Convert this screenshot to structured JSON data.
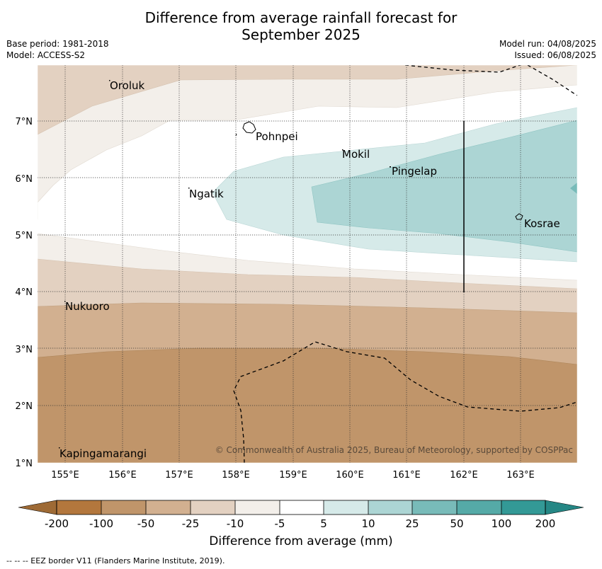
{
  "title_line1": "Difference from average rainfall forecast for",
  "title_line2": "September 2025",
  "base_period": "Base period: 1981-2018",
  "model": "Model: ACCESS-S2",
  "model_run": "Model run: 04/08/2025",
  "issued": "Issued: 06/08/2025",
  "copyright": "© Commonwealth of Australia 2025, Bureau of Meteorology, supported by COSPPac",
  "colorbar_label": "Difference from average (mm)",
  "footer": "--  --  -- EEZ border V11 (Flanders Marine Institute, 2019).",
  "map": {
    "lon_range": [
      154.5,
      164.0
    ],
    "lat_range": [
      1.0,
      8.0
    ],
    "lon_ticks": [
      "155°E",
      "156°E",
      "157°E",
      "158°E",
      "159°E",
      "160°E",
      "161°E",
      "162°E",
      "163°E"
    ],
    "lat_ticks": [
      "1°N",
      "2°N",
      "3°N",
      "4°N",
      "5°N",
      "6°N",
      "7°N"
    ],
    "grid": true,
    "places": [
      {
        "name": "Oroluk",
        "lon": 155.75,
        "lat": 7.6
      },
      {
        "name": "Pohnpei",
        "lon": 158.3,
        "lat": 6.85
      },
      {
        "name": "Mokil",
        "lon": 159.85,
        "lat": 6.4
      },
      {
        "name": "Pingelap",
        "lon": 160.7,
        "lat": 6.2
      },
      {
        "name": "Ngatik",
        "lon": 157.15,
        "lat": 5.8
      },
      {
        "name": "Kosrae",
        "lon": 163.0,
        "lat": 5.3
      },
      {
        "name": "Nukuoro",
        "lon": 154.95,
        "lat": 3.85
      },
      {
        "name": "Kapingamarangi",
        "lon": 154.85,
        "lat": 1.25
      }
    ]
  },
  "colorbar": {
    "ticks": [
      "-200",
      "-100",
      "-50",
      "-25",
      "-10",
      "-5",
      "5",
      "10",
      "25",
      "50",
      "100",
      "200"
    ],
    "colors": {
      "lt_-200": "#9e6a35",
      "-200_-100": "#b3773d",
      "-100_-50": "#c0956a",
      "-50_-25": "#d2b090",
      "-25_-10": "#e3d1c1",
      "-10_-5": "#f3efea",
      "-5_5": "#ffffff",
      "5_10": "#d6eae9",
      "10_25": "#acd5d4",
      "25_50": "#78bbb9",
      "50_100": "#55aaa7",
      "100_200": "#339996",
      "gt_200": "#258785"
    }
  }
}
